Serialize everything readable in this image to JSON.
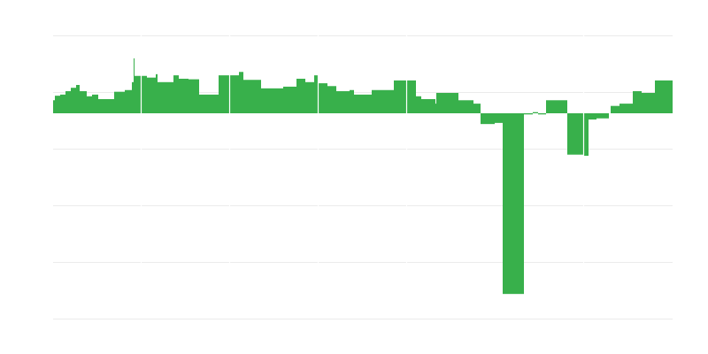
{
  "chart_data": {
    "type": "bar",
    "title": "",
    "xlabel": "",
    "ylabel": "",
    "xlim": [
      0,
      700
    ],
    "ylim": [
      -3.625,
      1.375
    ],
    "grid": true,
    "gridlines_y": [
      1.375,
      0.375,
      -0.625,
      -1.625,
      -2.625,
      -3.625
    ],
    "separators_x": [
      99,
      199,
      299,
      399,
      599
    ],
    "bar_color": "#38b04b",
    "grid_color": "#ebebeb",
    "segments": [
      {
        "from": 0,
        "to": 2,
        "value": 0.23
      },
      {
        "from": 2,
        "to": 8,
        "value": 0.31
      },
      {
        "from": 8,
        "to": 14,
        "value": 0.33
      },
      {
        "from": 14,
        "to": 20,
        "value": 0.39
      },
      {
        "from": 20,
        "to": 26,
        "value": 0.45
      },
      {
        "from": 26,
        "to": 30,
        "value": 0.5
      },
      {
        "from": 30,
        "to": 38,
        "value": 0.39
      },
      {
        "from": 38,
        "to": 44,
        "value": 0.3
      },
      {
        "from": 44,
        "to": 51,
        "value": 0.33
      },
      {
        "from": 51,
        "to": 69,
        "value": 0.25
      },
      {
        "from": 69,
        "to": 81,
        "value": 0.38
      },
      {
        "from": 81,
        "to": 89,
        "value": 0.41
      },
      {
        "from": 89,
        "to": 91,
        "value": 0.55
      },
      {
        "from": 91,
        "to": 92,
        "value": 0.97
      },
      {
        "from": 92,
        "to": 106,
        "value": 0.66
      },
      {
        "from": 106,
        "to": 116,
        "value": 0.63
      },
      {
        "from": 116,
        "to": 118,
        "value": 0.69
      },
      {
        "from": 118,
        "to": 136,
        "value": 0.55
      },
      {
        "from": 136,
        "to": 142,
        "value": 0.67
      },
      {
        "from": 142,
        "to": 153,
        "value": 0.61
      },
      {
        "from": 153,
        "to": 165,
        "value": 0.6
      },
      {
        "from": 165,
        "to": 187,
        "value": 0.33
      },
      {
        "from": 187,
        "to": 210,
        "value": 0.67
      },
      {
        "from": 210,
        "to": 215,
        "value": 0.73
      },
      {
        "from": 215,
        "to": 235,
        "value": 0.59
      },
      {
        "from": 235,
        "to": 260,
        "value": 0.44
      },
      {
        "from": 260,
        "to": 275,
        "value": 0.47
      },
      {
        "from": 275,
        "to": 285,
        "value": 0.61
      },
      {
        "from": 285,
        "to": 295,
        "value": 0.55
      },
      {
        "from": 295,
        "to": 300,
        "value": 0.67
      },
      {
        "from": 300,
        "to": 310,
        "value": 0.53
      },
      {
        "from": 310,
        "to": 320,
        "value": 0.48
      },
      {
        "from": 320,
        "to": 335,
        "value": 0.39
      },
      {
        "from": 335,
        "to": 340,
        "value": 0.41
      },
      {
        "from": 340,
        "to": 360,
        "value": 0.33
      },
      {
        "from": 360,
        "to": 385,
        "value": 0.41
      },
      {
        "from": 385,
        "to": 410,
        "value": 0.58
      },
      {
        "from": 410,
        "to": 416,
        "value": 0.3
      },
      {
        "from": 416,
        "to": 432,
        "value": 0.25
      },
      {
        "from": 432,
        "to": 433,
        "value": 0.17
      },
      {
        "from": 433,
        "to": 458,
        "value": 0.36
      },
      {
        "from": 458,
        "to": 475,
        "value": 0.23
      },
      {
        "from": 475,
        "to": 483,
        "value": 0.17
      },
      {
        "from": 483,
        "to": 499,
        "value": -0.19
      },
      {
        "from": 499,
        "to": 508,
        "value": -0.17
      },
      {
        "from": 508,
        "to": 532,
        "value": -3.19
      },
      {
        "from": 532,
        "to": 542,
        "value": -0.02
      },
      {
        "from": 542,
        "to": 548,
        "value": 0.02
      },
      {
        "from": 548,
        "to": 557,
        "value": -0.02
      },
      {
        "from": 557,
        "to": 581,
        "value": 0.23
      },
      {
        "from": 581,
        "to": 599,
        "value": -0.73
      },
      {
        "from": 599,
        "to": 605,
        "value": -0.75
      },
      {
        "from": 605,
        "to": 614,
        "value": -0.11
      },
      {
        "from": 614,
        "to": 628,
        "value": -0.09
      },
      {
        "from": 630,
        "to": 640,
        "value": 0.13
      },
      {
        "from": 640,
        "to": 655,
        "value": 0.17
      },
      {
        "from": 655,
        "to": 665,
        "value": 0.39
      },
      {
        "from": 665,
        "to": 680,
        "value": 0.36
      },
      {
        "from": 680,
        "to": 700,
        "value": 0.58
      }
    ]
  }
}
